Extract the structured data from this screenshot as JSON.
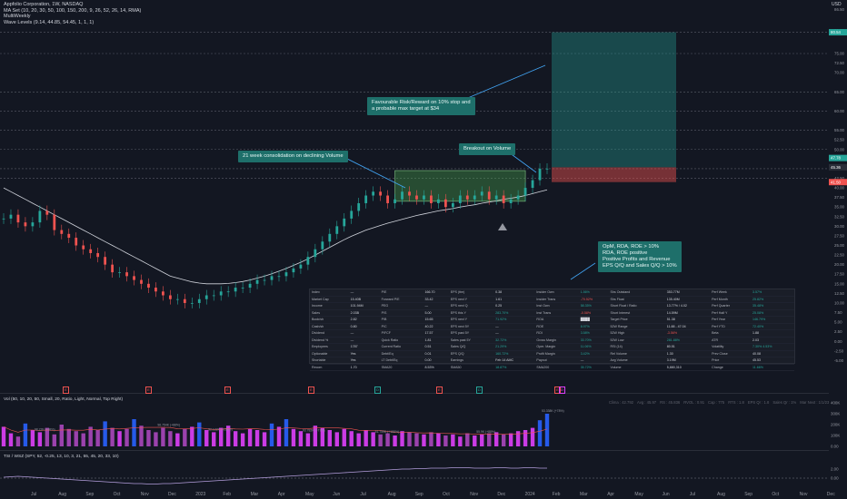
{
  "legend": {
    "title": "Appfolio Corporation, 1W, NASDAQ",
    "ma_set": "MA Set (10, 20, 30, 50, 100, 150, 200, 9, 26, 52, 26, 14, RMA)",
    "multiweekly": "MultiWeekly",
    "wave_levels": "Wave Levels (9.14, 44.85, 54.45, 1, 1, 1)"
  },
  "currency": "USD",
  "annotations": {
    "risk_reward": [
      "Favourable Risk/Reward on 10% stop and",
      "a probable max target at $34"
    ],
    "consolidation": "21 week consolidation on declining Volume",
    "breakout": "Breakout on Volume",
    "fundamentals": [
      "OpM, RDA, ROE > 10%",
      "RDA, ROE positive",
      "Positive Profits and Revenue",
      "EPS Q/Q and Sales Q/Q > 10%"
    ]
  },
  "price_badges": {
    "target": "80.54",
    "last": "45.36",
    "stop": "41.50",
    "other": "47.78"
  },
  "volume_legend": "Vol (50, 10, 20, 50, Small, 20, Ratio, Light, Normal, Top Right)",
  "indicator_legend": "TSI / WSZ (SPY, 52, -0.25, 13, 10, 3, 21, 55, 45, 20, 33, 10)",
  "stats_strip": [
    "Clima : 42.792",
    "Avg : 45.97",
    "RS : 45.836",
    "RVOL : 0.91",
    "Cap : 775",
    "RTS : 1.8",
    "EPS Qr : 1.8",
    "Sales Qr : 1%",
    "Mar Next : 1/1/23"
  ],
  "flags": [
    "E",
    "E",
    "E",
    "E",
    "D",
    "E",
    "D",
    "E",
    "D"
  ],
  "vol_labels": [
    "98.22K (+98%)",
    "96.754K (+88%)",
    "92.122K (+198%)",
    "93.782K (+77%)",
    "51.759K (+188%)",
    "55.9K (+88%)",
    "53.338K (+78%)"
  ],
  "time_axis": [
    "Jul",
    "Aug",
    "Sep",
    "Oct",
    "Nov",
    "Dec",
    "2023",
    "Feb",
    "Mar",
    "Apr",
    "May",
    "Jun",
    "Jul",
    "Aug",
    "Sep",
    "Oct",
    "Nov",
    "Dec",
    "2024",
    "Feb",
    "Mar",
    "Apr",
    "May",
    "Jun",
    "Jul",
    "Aug",
    "Sep",
    "Oct",
    "Nov",
    "Dec"
  ],
  "vol_axis": [
    "400K",
    "300K",
    "200K",
    "100K",
    "0.00"
  ],
  "ind_axis": [
    "2.00",
    "0.00"
  ],
  "table": [
    [
      "Index",
      "—",
      "P/E",
      "166.70",
      "EPS (ttm)",
      "0.38",
      "Insider Own",
      "1.56%",
      "Shs Outstand",
      "353.77M",
      "Perf Week",
      "3.57%"
    ],
    [
      "Market Cap",
      "15.40B",
      "Forward P/E",
      "33.42",
      "EPS next Y",
      "1.61",
      "Insider Trans",
      "-70.52%",
      "Shs Float",
      "135.40M",
      "Perf Month",
      "25.82%"
    ],
    [
      "Income",
      "101.94M",
      "PEG",
      "—",
      "EPS next Q",
      "0.25",
      "Inst Own",
      "58.35%",
      "Short Float / Ratio",
      "13.77% / 4.02",
      "Perf Quarter",
      "35.48%"
    ],
    [
      "Sales",
      "2.03B",
      "P/S",
      "5.00",
      "EPS this Y",
      "283.70%",
      "Inst Trans",
      "-0.58%",
      "Short Interest",
      "14.59M",
      "Perf Half Y",
      "25.08%"
    ],
    [
      "Book/sh",
      "2.82",
      "P/B",
      "15.65",
      "EPS next Y",
      "71.92%",
      "ROA",
      "████",
      "Target Price",
      "51.38",
      "Perf Year",
      "146.79%"
    ],
    [
      "Cash/sh",
      "0.80",
      "P/C",
      "40.22",
      "EPS next 5Y",
      "—",
      "ROE",
      "8.97%",
      "52W Range",
      "11.88 - 47.04",
      "Perf YTD",
      "72.40%"
    ],
    [
      "Dividend",
      "—",
      "P/FCF",
      "17.57",
      "EPS past 5Y",
      "—",
      "ROI",
      "3.58%",
      "52W High",
      "-3.56%",
      "Beta",
      "1.88"
    ],
    [
      "Dividend %",
      "—",
      "Quick Ratio",
      "1.81",
      "Sales past 5Y",
      "32.72%",
      "Gross Margin",
      "33.70%",
      "52W Low",
      "281.88%",
      "ATR",
      "2.03"
    ],
    [
      "Employees",
      "1787",
      "Current Ratio",
      "0.51",
      "Sales Q/Q",
      "21.29%",
      "Oper. Margin",
      "11.06%",
      "RSI (14)",
      "80.51",
      "Volatility",
      "7.30% 4.53%"
    ],
    [
      "Optionable",
      "Yes",
      "Debt/Eq",
      "0.01",
      "EPS Q/Q",
      "160.72%",
      "Profit Margin",
      "3.42%",
      "Rel Volume",
      "1.30",
      "Prev Close",
      "40.08"
    ],
    [
      "Shortable",
      "Yes",
      "LT Debt/Eq",
      "0.00",
      "Earnings",
      "Feb 14 AMC",
      "Payout",
      "—",
      "Avg Volume",
      "3.19M",
      "Price",
      "45.53"
    ],
    [
      "Recom",
      "1.70",
      "SMA20",
      "8.53%",
      "SMA50",
      "18.87%",
      "SMA200",
      "35.72%",
      "Volume",
      "5,880,310",
      "Change",
      "11.66%"
    ]
  ],
  "chart_data": {
    "type": "candlestick",
    "title": "Appfolio Corporation, 1W, NASDAQ",
    "y_axis_labels": [
      "86.50",
      "81.00",
      "75.00",
      "72.50",
      "70.00",
      "65.00",
      "60.00",
      "55.00",
      "52.50",
      "50.00",
      "45.00",
      "42.50",
      "40.00",
      "37.50",
      "35.00",
      "32.50",
      "30.00",
      "27.50",
      "25.00",
      "22.50",
      "20.00",
      "17.50",
      "15.00",
      "12.50",
      "10.00",
      "7.50",
      "5.00",
      "2.50",
      "0.00",
      "-2.50",
      "-5.00"
    ],
    "ylim": [
      -7.5,
      88
    ],
    "close_series": [
      32,
      33,
      31,
      30,
      31,
      34,
      33,
      29,
      28,
      27,
      25,
      24,
      23,
      22,
      20,
      18,
      18,
      17,
      16,
      15,
      14,
      13,
      12,
      11,
      11,
      10,
      10,
      11,
      12,
      12,
      13,
      13,
      14,
      14,
      15,
      16,
      16,
      17,
      17,
      18,
      19,
      20,
      22,
      24,
      26,
      28,
      30,
      32,
      34,
      36,
      38,
      39,
      38,
      36,
      37,
      39,
      38,
      37,
      38,
      36,
      37,
      35,
      36,
      38,
      37,
      38,
      39,
      37,
      38,
      36,
      37,
      38,
      40,
      42,
      45,
      45
    ],
    "ma_series": [
      40,
      39,
      38,
      37,
      36,
      35,
      34,
      33,
      32,
      31,
      30,
      29,
      28,
      27,
      26,
      25,
      24,
      23,
      22,
      21,
      20,
      19,
      18,
      17,
      16.5,
      16,
      15.5,
      15.2,
      15,
      15,
      15,
      15.1,
      15.3,
      15.6,
      16,
      16.5,
      17,
      17.6,
      18.3,
      19,
      19.8,
      20.6,
      21.5,
      22.5,
      23.5,
      24.5,
      25.5,
      26.5,
      27.4,
      28.2,
      29,
      29.6,
      30.2,
      30.8,
      31.3,
      31.8,
      32.3,
      32.8,
      33.2,
      33.6,
      34,
      34.3,
      34.6,
      35,
      35.3,
      35.6,
      36,
      36.3,
      36.6,
      37,
      37.3,
      37.6,
      38,
      38.5,
      39,
      39.5
    ],
    "hlines": [
      80.54,
      75,
      65,
      60,
      55,
      50,
      45,
      42.5
    ],
    "target_zone": [
      45.36,
      80.54
    ],
    "stop_zone": [
      41.5,
      45.36
    ],
    "consolidation_box": [
      36.5,
      44.5
    ],
    "volume": [
      180,
      120,
      90,
      210,
      150,
      130,
      170,
      110,
      200,
      160,
      140,
      120,
      180,
      150,
      230,
      170,
      140,
      160,
      250,
      190,
      150,
      130,
      170,
      140,
      120,
      160,
      180,
      220,
      150,
      130,
      170,
      190,
      140,
      120,
      160,
      150,
      130,
      210,
      180,
      250,
      160,
      140,
      120,
      190,
      170,
      150,
      130,
      160,
      140,
      120,
      150,
      130,
      110,
      120,
      100,
      140,
      130,
      120,
      110,
      130,
      120,
      100,
      110,
      90,
      120,
      100,
      110,
      120,
      130,
      110,
      120,
      140,
      150,
      170,
      240,
      300
    ],
    "indicator": [
      0.2,
      0.3,
      0.4,
      0.3,
      0.2,
      0.1,
      0.0,
      -0.1,
      -0.2,
      -0.3,
      -0.4,
      -0.5,
      -0.6,
      -0.7,
      -0.8,
      -0.9,
      -1.0,
      -1.1,
      -1.2,
      -1.2,
      -1.3,
      -1.3,
      -1.2,
      -1.2,
      -1.1,
      -1.0,
      -0.9,
      -0.8,
      -0.7,
      -0.6,
      -0.5,
      -0.4,
      -0.3,
      -0.2,
      -0.1,
      0.0,
      0.1,
      0.2,
      0.3,
      0.4,
      0.5,
      0.6,
      0.7,
      0.8,
      0.9,
      1.0,
      1.1,
      1.2,
      1.3,
      1.4,
      1.5,
      1.6,
      1.7,
      1.8,
      1.9,
      2.0,
      2.0,
      2.1,
      2.1,
      2.2,
      2.2,
      2.2,
      2.3,
      2.3,
      2.3,
      2.2,
      2.2,
      2.2,
      2.3,
      2.3,
      2.2,
      2.2,
      2.3,
      2.3,
      2.2,
      2.2
    ]
  }
}
